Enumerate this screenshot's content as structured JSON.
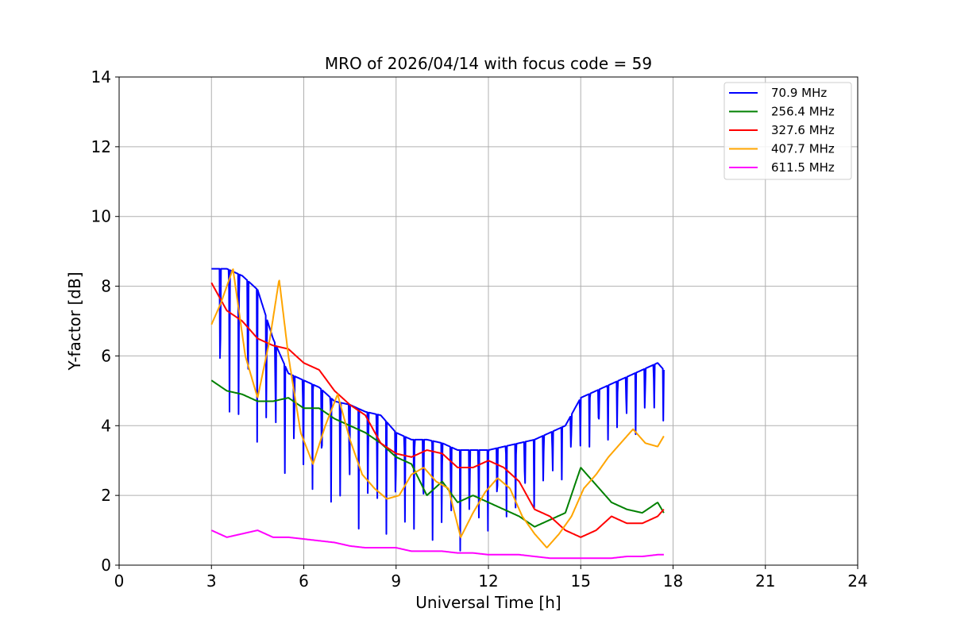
{
  "chart_data": {
    "type": "line",
    "title": "MRO of 2026/04/14 with focus code = 59",
    "xlabel": "Universal Time [h]",
    "ylabel": "Y-factor [dB]",
    "xlim": [
      0,
      24
    ],
    "ylim": [
      0,
      14
    ],
    "xticks": [
      0,
      3,
      6,
      9,
      12,
      15,
      18,
      21,
      24
    ],
    "yticks": [
      0,
      2,
      4,
      6,
      8,
      10,
      12,
      14
    ],
    "grid": true,
    "legend_position": "top-right",
    "series": [
      {
        "name": " 70.9 MHz",
        "color": "#0000ff",
        "x": [
          3.0,
          3.5,
          4.0,
          4.5,
          5.0,
          5.5,
          6.0,
          6.5,
          7.0,
          7.5,
          8.0,
          8.5,
          9.0,
          9.5,
          10.0,
          10.5,
          11.0,
          11.5,
          12.0,
          12.5,
          13.0,
          13.5,
          14.0,
          14.5,
          15.0,
          15.5,
          16.0,
          16.5,
          17.0,
          17.5,
          17.7
        ],
        "y": [
          8.5,
          8.5,
          8.3,
          7.9,
          6.5,
          5.5,
          5.3,
          5.1,
          4.7,
          4.6,
          4.4,
          4.3,
          3.8,
          3.6,
          3.6,
          3.5,
          3.3,
          3.3,
          3.3,
          3.4,
          3.5,
          3.6,
          3.8,
          4.0,
          4.8,
          5.0,
          5.2,
          5.4,
          5.6,
          5.8,
          5.6
        ],
        "dip_min": [
          3.6,
          3.4,
          3.3,
          3.1,
          2.8,
          2.5,
          2.0,
          1.5,
          1.2,
          1.0,
          0.8,
          0.7,
          0.6,
          0.5,
          0.4,
          0.3,
          0.4,
          0.5,
          0.7,
          0.9,
          1.2,
          1.5,
          2.0,
          2.5,
          3.0,
          3.2,
          3.4,
          3.6,
          3.8,
          4.0,
          4.0
        ],
        "dip_period_h": 0.3
      },
      {
        "name": "256.4 MHz",
        "color": "#008000",
        "x": [
          3.0,
          3.5,
          4.0,
          4.5,
          5.0,
          5.5,
          6.0,
          6.5,
          7.0,
          7.5,
          8.0,
          8.5,
          9.0,
          9.5,
          10.0,
          10.5,
          11.0,
          11.5,
          12.0,
          12.5,
          13.0,
          13.5,
          14.0,
          14.5,
          15.0,
          15.5,
          16.0,
          16.5,
          17.0,
          17.5,
          17.7
        ],
        "y": [
          5.3,
          5.0,
          4.9,
          4.7,
          4.7,
          4.8,
          4.5,
          4.5,
          4.2,
          4.0,
          3.8,
          3.5,
          3.1,
          2.9,
          2.0,
          2.4,
          1.8,
          2.0,
          1.8,
          1.6,
          1.4,
          1.1,
          1.3,
          1.5,
          2.8,
          2.3,
          1.8,
          1.6,
          1.5,
          1.8,
          1.5
        ]
      },
      {
        "name": "327.6 MHz",
        "color": "#ff0000",
        "x": [
          3.0,
          3.5,
          4.0,
          4.5,
          5.0,
          5.5,
          6.0,
          6.5,
          7.0,
          7.5,
          8.0,
          8.5,
          9.0,
          9.5,
          10.0,
          10.5,
          11.0,
          11.5,
          12.0,
          12.5,
          13.0,
          13.5,
          14.0,
          14.5,
          15.0,
          15.5,
          16.0,
          16.5,
          17.0,
          17.5,
          17.7
        ],
        "y": [
          8.1,
          7.3,
          7.0,
          6.5,
          6.3,
          6.2,
          5.8,
          5.6,
          5.0,
          4.6,
          4.3,
          3.5,
          3.2,
          3.1,
          3.3,
          3.2,
          2.8,
          2.8,
          3.0,
          2.8,
          2.4,
          1.6,
          1.4,
          1.0,
          0.8,
          1.0,
          1.4,
          1.2,
          1.2,
          1.4,
          1.6
        ]
      },
      {
        "name": "407.7 MHz",
        "color": "#ffa500",
        "x": [
          3.0,
          3.3,
          3.7,
          4.1,
          4.5,
          4.9,
          5.2,
          5.5,
          5.9,
          6.3,
          6.7,
          7.1,
          7.5,
          7.9,
          8.3,
          8.7,
          9.1,
          9.5,
          9.9,
          10.3,
          10.7,
          11.1,
          11.5,
          11.9,
          12.3,
          12.7,
          13.1,
          13.5,
          13.9,
          14.3,
          14.7,
          15.1,
          15.5,
          15.9,
          16.3,
          16.7,
          17.1,
          17.5,
          17.7
        ],
        "y": [
          6.9,
          7.5,
          8.5,
          6.0,
          4.8,
          6.5,
          8.2,
          6.0,
          3.8,
          2.9,
          4.0,
          4.9,
          3.6,
          2.6,
          2.2,
          1.9,
          2.0,
          2.6,
          2.8,
          2.4,
          2.2,
          0.8,
          1.5,
          2.1,
          2.5,
          2.2,
          1.4,
          0.9,
          0.5,
          0.9,
          1.4,
          2.2,
          2.6,
          3.1,
          3.5,
          3.9,
          3.5,
          3.4,
          3.7
        ]
      },
      {
        "name": "611.5 MHz",
        "color": "#ff00ff",
        "x": [
          3.0,
          3.5,
          4.0,
          4.5,
          5.0,
          5.5,
          6.0,
          6.5,
          7.0,
          7.5,
          8.0,
          8.5,
          9.0,
          9.5,
          10.0,
          10.5,
          11.0,
          11.5,
          12.0,
          12.5,
          13.0,
          13.5,
          14.0,
          14.5,
          15.0,
          15.5,
          16.0,
          16.5,
          17.0,
          17.5,
          17.7
        ],
        "y": [
          1.0,
          0.8,
          0.9,
          1.0,
          0.8,
          0.8,
          0.75,
          0.7,
          0.65,
          0.55,
          0.5,
          0.5,
          0.5,
          0.4,
          0.4,
          0.4,
          0.35,
          0.35,
          0.3,
          0.3,
          0.3,
          0.25,
          0.2,
          0.2,
          0.2,
          0.2,
          0.2,
          0.25,
          0.25,
          0.3,
          0.3
        ]
      }
    ]
  }
}
